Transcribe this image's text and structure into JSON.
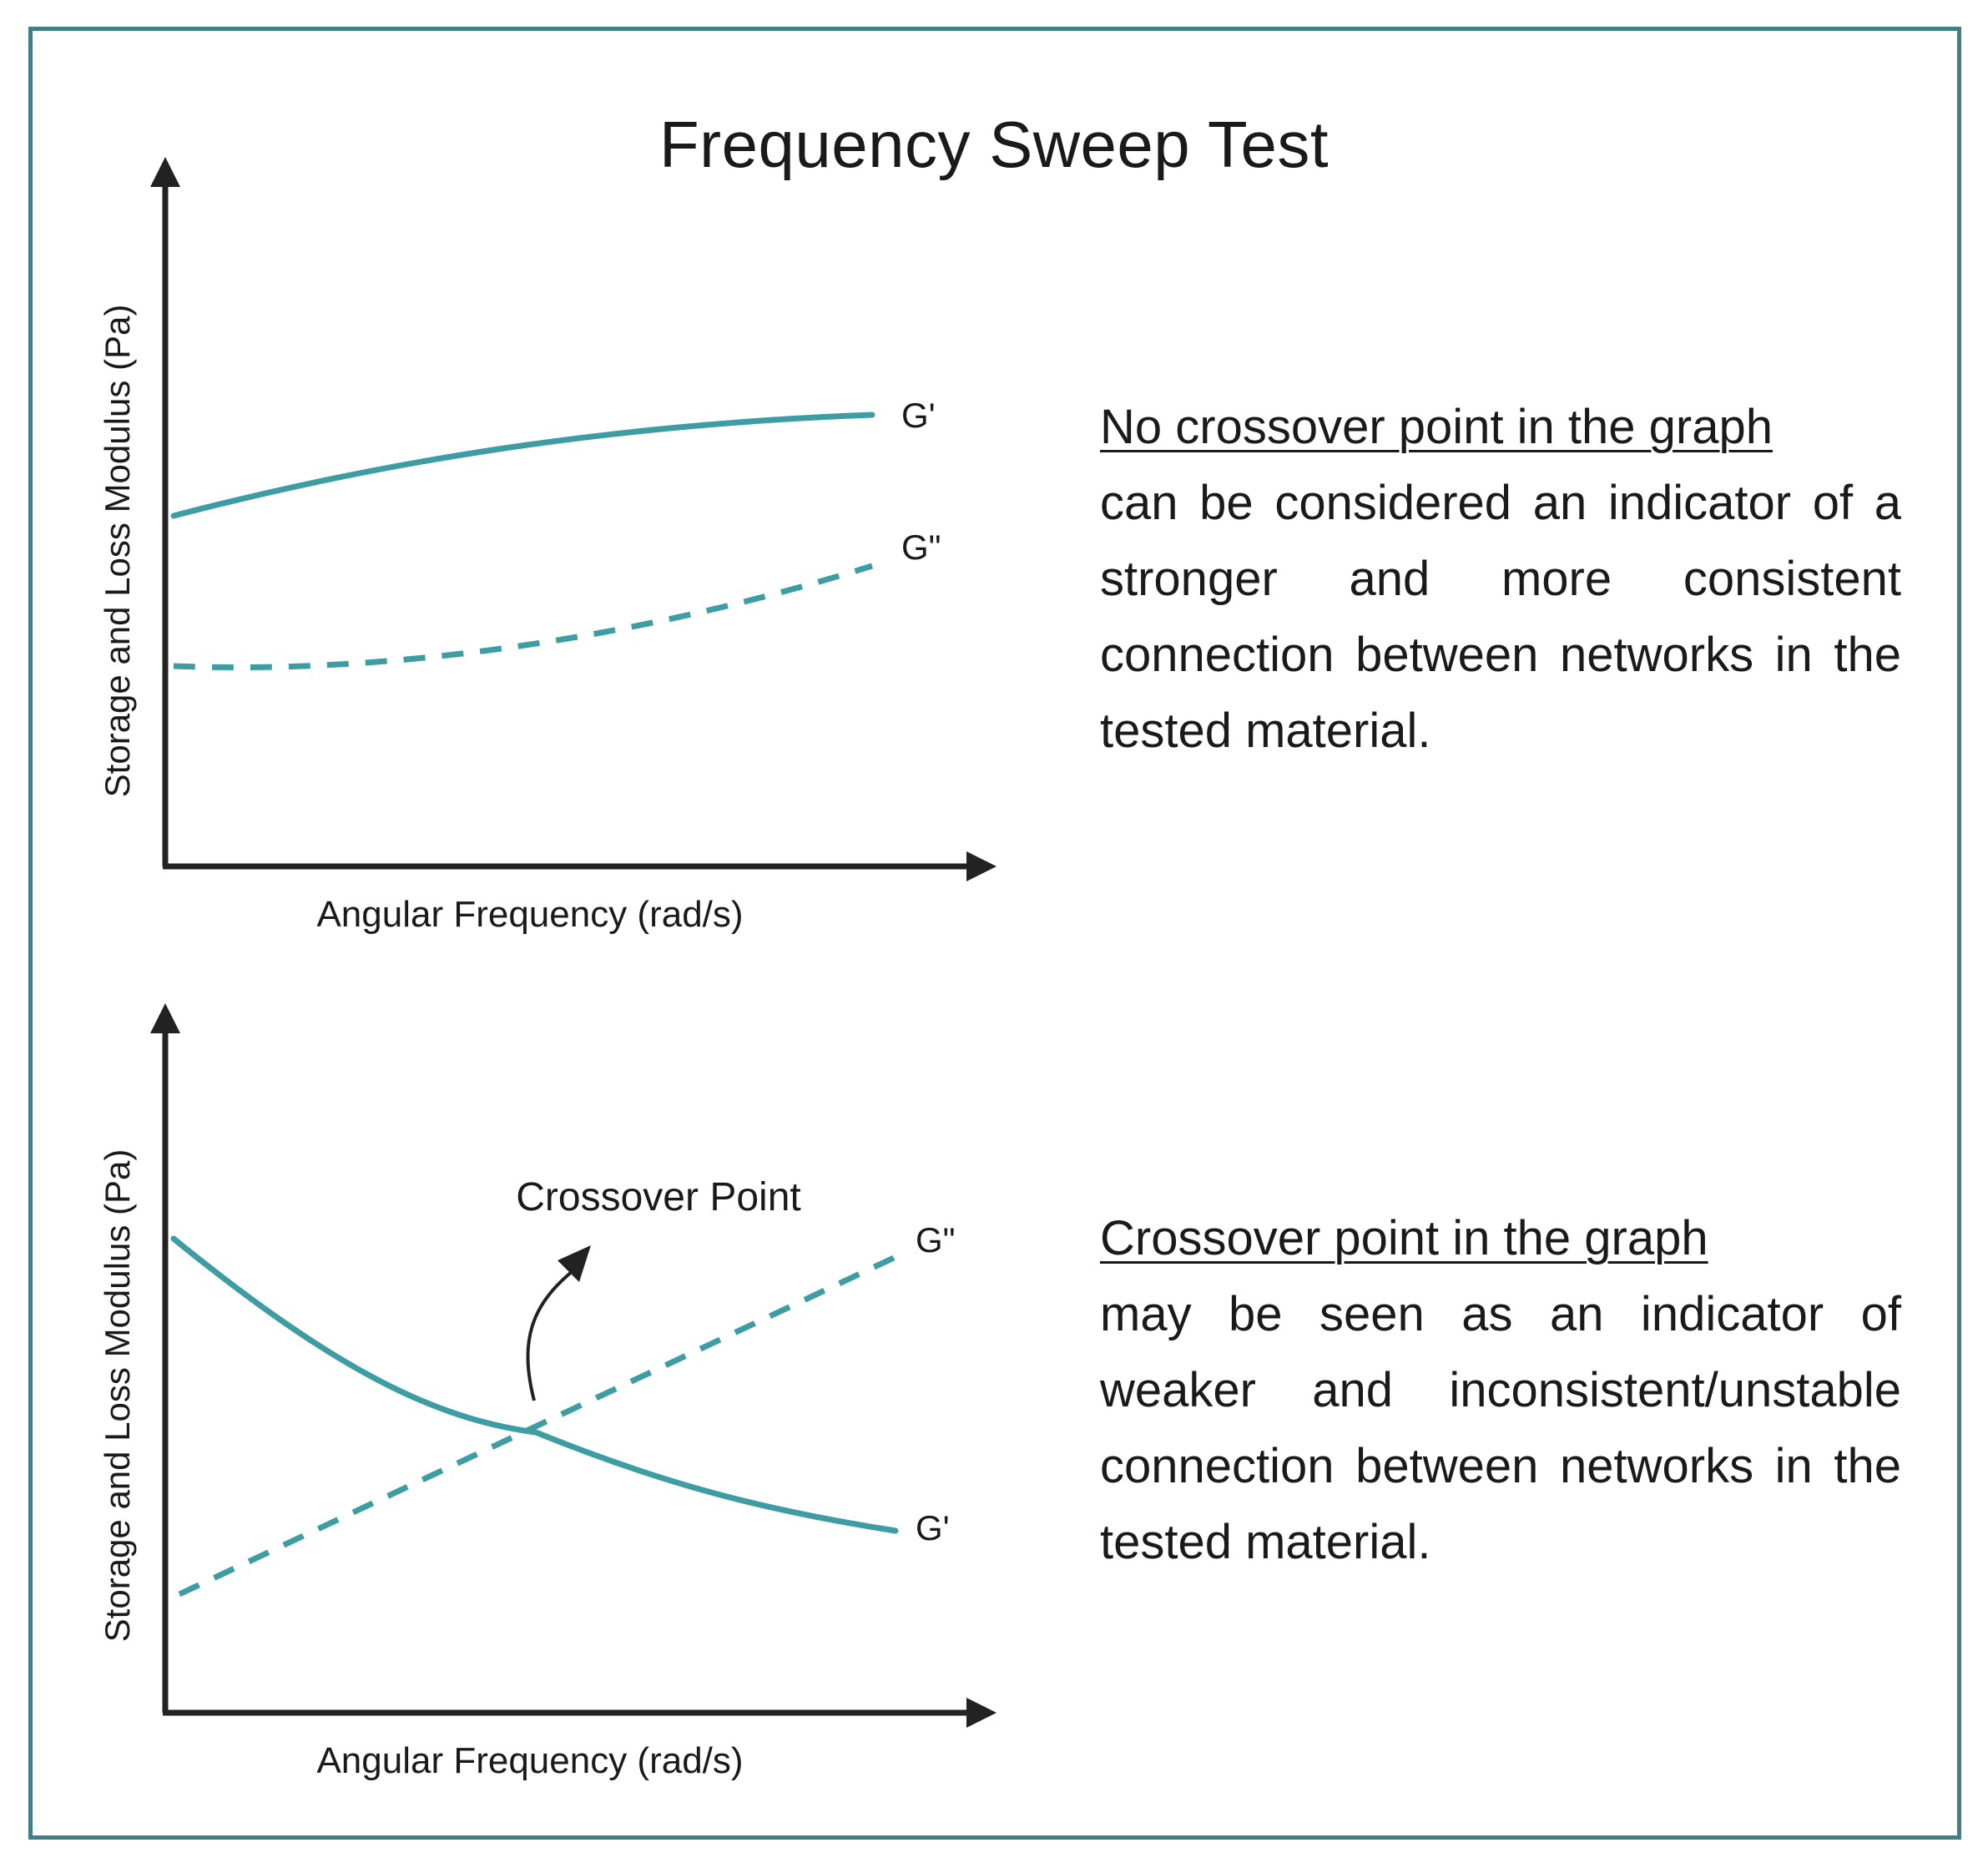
{
  "title": "Frequency Sweep Test",
  "colors": {
    "frame": "#3f7f86",
    "curve": "#3d9da3",
    "axis": "#222222"
  },
  "panel_top": {
    "ylabel": "Storage and Loss Modulus (Pa)",
    "xlabel": "Angular Frequency (rad/s)",
    "series_labels": {
      "gprime": "G'",
      "gdouble": "G\""
    },
    "description_heading": "No crossover point in the graph",
    "description_body": "can be considered an indicator of a stronger and more consistent connection between networks in the tested material."
  },
  "panel_bottom": {
    "ylabel": "Storage and Loss Modulus (Pa)",
    "xlabel": "Angular Frequency (rad/s)",
    "series_labels": {
      "gprime": "G'",
      "gdouble": "G\""
    },
    "annotation": "Crossover Point",
    "description_heading": "Crossover point in the graph",
    "description_body": "may be seen as an indicator of weaker and inconsistent/unstable connection between networks in the tested material."
  }
}
